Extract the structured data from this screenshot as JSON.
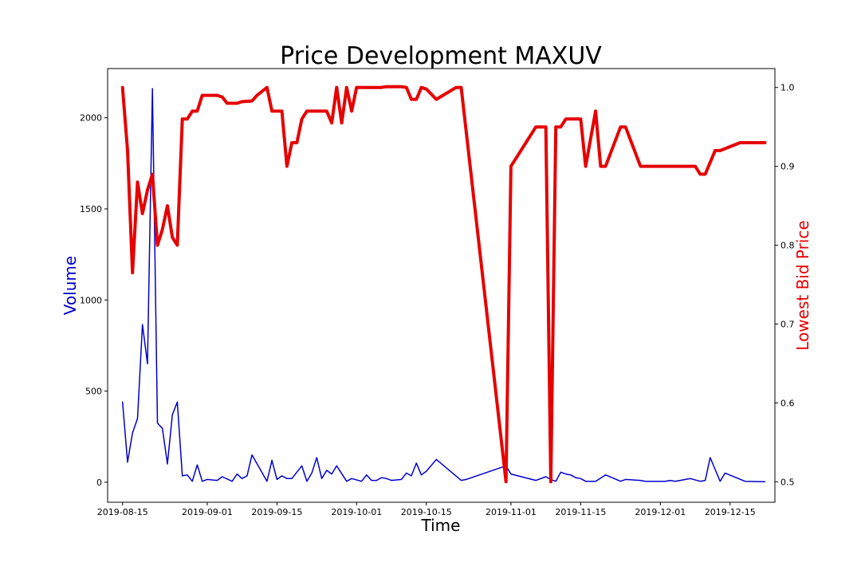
{
  "chart_data": {
    "type": "line",
    "title": "Price Development MAXUV",
    "xlabel": "Time",
    "ylabel_left": "Volume",
    "ylabel_right": "Lowest Bid Price",
    "grid": false,
    "x_ticks": [
      "2019-08-15",
      "2019-09-01",
      "2019-09-15",
      "2019-10-01",
      "2019-10-15",
      "2019-11-01",
      "2019-11-15",
      "2019-12-01",
      "2019-12-15"
    ],
    "y_left_ticks": [
      0,
      500,
      1000,
      1500,
      2000
    ],
    "y_right_ticks": [
      0.5,
      0.6,
      0.7,
      0.8,
      0.9,
      1.0
    ],
    "xlim": [
      "2019-08-12",
      "2019-12-24"
    ],
    "ylim_left": [
      -110,
      2270
    ],
    "ylim_right": [
      0.474,
      1.024
    ],
    "colors": {
      "volume": "#0000cc",
      "price": "#e60000"
    },
    "series": [
      {
        "name": "Volume",
        "axis": "left",
        "points": [
          [
            "2019-08-15",
            440
          ],
          [
            "2019-08-16",
            110
          ],
          [
            "2019-08-17",
            270
          ],
          [
            "2019-08-18",
            350
          ],
          [
            "2019-08-19",
            865
          ],
          [
            "2019-08-20",
            650
          ],
          [
            "2019-08-21",
            2160
          ],
          [
            "2019-08-22",
            325
          ],
          [
            "2019-08-23",
            295
          ],
          [
            "2019-08-24",
            100
          ],
          [
            "2019-08-25",
            370
          ],
          [
            "2019-08-26",
            440
          ],
          [
            "2019-08-27",
            35
          ],
          [
            "2019-08-28",
            40
          ],
          [
            "2019-08-29",
            5
          ],
          [
            "2019-08-30",
            95
          ],
          [
            "2019-08-31",
            5
          ],
          [
            "2019-09-01",
            15
          ],
          [
            "2019-09-03",
            10
          ],
          [
            "2019-09-04",
            30
          ],
          [
            "2019-09-06",
            5
          ],
          [
            "2019-09-07",
            45
          ],
          [
            "2019-09-08",
            20
          ],
          [
            "2019-09-09",
            35
          ],
          [
            "2019-09-10",
            150
          ],
          [
            "2019-09-13",
            5
          ],
          [
            "2019-09-14",
            120
          ],
          [
            "2019-09-15",
            15
          ],
          [
            "2019-09-16",
            35
          ],
          [
            "2019-09-17",
            20
          ],
          [
            "2019-09-18",
            20
          ],
          [
            "2019-09-20",
            90
          ],
          [
            "2019-09-21",
            5
          ],
          [
            "2019-09-22",
            50
          ],
          [
            "2019-09-23",
            135
          ],
          [
            "2019-09-24",
            20
          ],
          [
            "2019-09-25",
            65
          ],
          [
            "2019-09-26",
            45
          ],
          [
            "2019-09-27",
            90
          ],
          [
            "2019-09-29",
            5
          ],
          [
            "2019-09-30",
            20
          ],
          [
            "2019-10-02",
            5
          ],
          [
            "2019-10-03",
            40
          ],
          [
            "2019-10-04",
            10
          ],
          [
            "2019-10-05",
            10
          ],
          [
            "2019-10-06",
            25
          ],
          [
            "2019-10-07",
            20
          ],
          [
            "2019-10-08",
            10
          ],
          [
            "2019-10-10",
            15
          ],
          [
            "2019-10-11",
            50
          ],
          [
            "2019-10-12",
            35
          ],
          [
            "2019-10-13",
            105
          ],
          [
            "2019-10-14",
            40
          ],
          [
            "2019-10-15",
            60
          ],
          [
            "2019-10-17",
            125
          ],
          [
            "2019-10-22",
            10
          ],
          [
            "2019-10-23",
            15
          ],
          [
            "2019-10-31",
            90
          ],
          [
            "2019-11-01",
            45
          ],
          [
            "2019-11-06",
            10
          ],
          [
            "2019-11-08",
            30
          ],
          [
            "2019-11-09",
            15
          ],
          [
            "2019-11-10",
            5
          ],
          [
            "2019-11-11",
            55
          ],
          [
            "2019-11-12",
            45
          ],
          [
            "2019-11-13",
            40
          ],
          [
            "2019-11-14",
            25
          ],
          [
            "2019-11-15",
            20
          ],
          [
            "2019-11-16",
            5
          ],
          [
            "2019-11-18",
            5
          ],
          [
            "2019-11-20",
            40
          ],
          [
            "2019-11-23",
            5
          ],
          [
            "2019-11-24",
            15
          ],
          [
            "2019-11-27",
            10
          ],
          [
            "2019-11-28",
            5
          ],
          [
            "2019-11-29",
            5
          ],
          [
            "2019-12-02",
            5
          ],
          [
            "2019-12-03",
            10
          ],
          [
            "2019-12-04",
            5
          ],
          [
            "2019-12-07",
            20
          ],
          [
            "2019-12-09",
            5
          ],
          [
            "2019-12-10",
            10
          ],
          [
            "2019-12-11",
            135
          ],
          [
            "2019-12-13",
            5
          ],
          [
            "2019-12-14",
            50
          ],
          [
            "2019-12-18",
            5
          ],
          [
            "2019-12-22",
            3
          ]
        ]
      },
      {
        "name": "Lowest Bid Price",
        "axis": "right",
        "points": [
          [
            "2019-08-15",
            1.0
          ],
          [
            "2019-08-16",
            0.92
          ],
          [
            "2019-08-17",
            0.765
          ],
          [
            "2019-08-18",
            0.88
          ],
          [
            "2019-08-19",
            0.84
          ],
          [
            "2019-08-20",
            0.87
          ],
          [
            "2019-08-21",
            0.89
          ],
          [
            "2019-08-22",
            0.8
          ],
          [
            "2019-08-23",
            0.82
          ],
          [
            "2019-08-24",
            0.85
          ],
          [
            "2019-08-25",
            0.81
          ],
          [
            "2019-08-26",
            0.8
          ],
          [
            "2019-08-27",
            0.96
          ],
          [
            "2019-08-28",
            0.96
          ],
          [
            "2019-08-29",
            0.97
          ],
          [
            "2019-08-30",
            0.97
          ],
          [
            "2019-08-31",
            0.99
          ],
          [
            "2019-09-03",
            0.99
          ],
          [
            "2019-09-04",
            0.988
          ],
          [
            "2019-09-05",
            0.98
          ],
          [
            "2019-09-07",
            0.98
          ],
          [
            "2019-09-08",
            0.982
          ],
          [
            "2019-09-10",
            0.983
          ],
          [
            "2019-09-11",
            0.99
          ],
          [
            "2019-09-13",
            1.0
          ],
          [
            "2019-09-14",
            0.97
          ],
          [
            "2019-09-16",
            0.97
          ],
          [
            "2019-09-17",
            0.9
          ],
          [
            "2019-09-18",
            0.93
          ],
          [
            "2019-09-19",
            0.93
          ],
          [
            "2019-09-20",
            0.96
          ],
          [
            "2019-09-21",
            0.97
          ],
          [
            "2019-09-25",
            0.97
          ],
          [
            "2019-09-26",
            0.955
          ],
          [
            "2019-09-27",
            1.0
          ],
          [
            "2019-09-28",
            0.955
          ],
          [
            "2019-09-29",
            1.0
          ],
          [
            "2019-09-30",
            0.97
          ],
          [
            "2019-10-01",
            1.0
          ],
          [
            "2019-10-06",
            1.0
          ],
          [
            "2019-10-07",
            1.001
          ],
          [
            "2019-10-10",
            1.001
          ],
          [
            "2019-10-11",
            1.0
          ],
          [
            "2019-10-12",
            0.985
          ],
          [
            "2019-10-13",
            0.985
          ],
          [
            "2019-10-14",
            1.0
          ],
          [
            "2019-10-15",
            0.998
          ],
          [
            "2019-10-17",
            0.985
          ],
          [
            "2019-10-21",
            1.0
          ],
          [
            "2019-10-22",
            1.0
          ],
          [
            "2019-10-31",
            0.5
          ],
          [
            "2019-11-01",
            0.9
          ],
          [
            "2019-11-06",
            0.95
          ],
          [
            "2019-11-08",
            0.95
          ],
          [
            "2019-11-09",
            0.5
          ],
          [
            "2019-11-10",
            0.95
          ],
          [
            "2019-11-11",
            0.95
          ],
          [
            "2019-11-12",
            0.96
          ],
          [
            "2019-11-15",
            0.96
          ],
          [
            "2019-11-16",
            0.9
          ],
          [
            "2019-11-18",
            0.97
          ],
          [
            "2019-11-19",
            0.9
          ],
          [
            "2019-11-20",
            0.9
          ],
          [
            "2019-11-23",
            0.95
          ],
          [
            "2019-11-24",
            0.95
          ],
          [
            "2019-11-27",
            0.9
          ],
          [
            "2019-12-08",
            0.9
          ],
          [
            "2019-12-09",
            0.89
          ],
          [
            "2019-12-10",
            0.89
          ],
          [
            "2019-12-12",
            0.92
          ],
          [
            "2019-12-13",
            0.92
          ],
          [
            "2019-12-17",
            0.93
          ],
          [
            "2019-12-22",
            0.93
          ]
        ]
      }
    ]
  }
}
